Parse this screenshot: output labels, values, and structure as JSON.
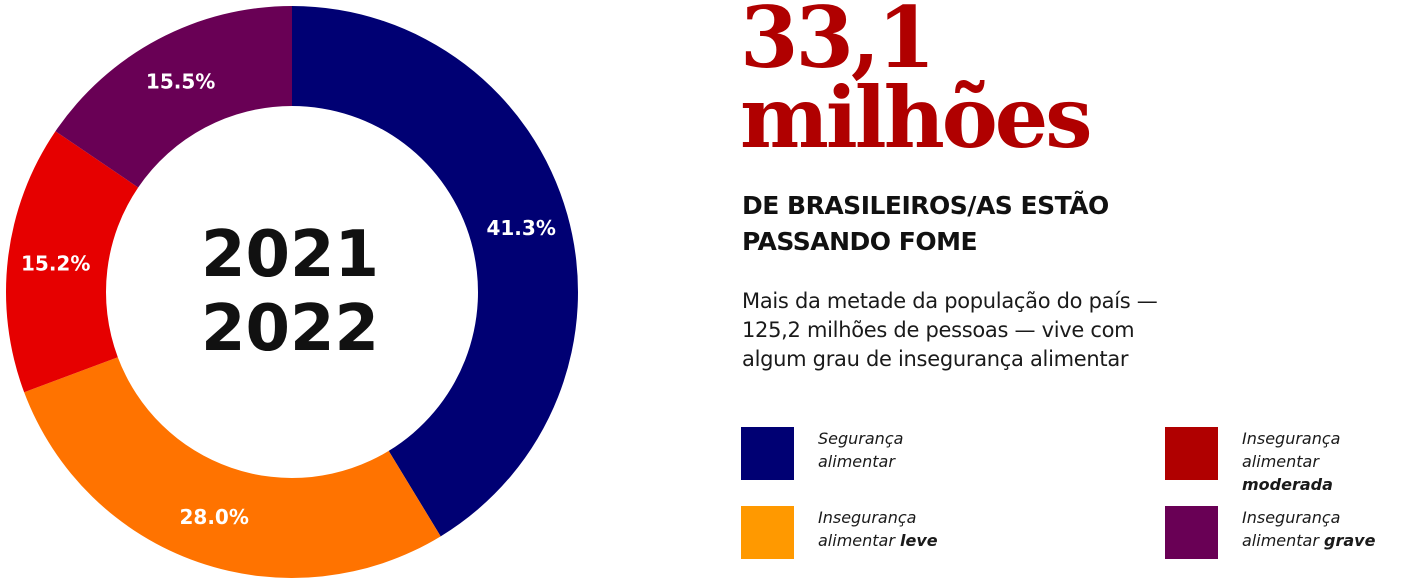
{
  "headline": {
    "line1": "33,1",
    "line2": "milhões"
  },
  "subhead": {
    "line1": "DE BRASILEIROS/AS ESTÃO",
    "line2": "PASSANDO FOME"
  },
  "description": {
    "line1": "Mais da metade da população do país —",
    "line2": "125,2 milhões de pessoas — vive com",
    "line3": "algum grau de insegurança alimentar"
  },
  "colors": {
    "seguranca": "#000073",
    "leve": "#ff7300",
    "moderada": "#e60000",
    "grave": "#690055",
    "headline": "#b00000",
    "legend_moderada": "#b00000",
    "legend_leve": "#ff9900"
  },
  "legend": [
    {
      "line1": "Segurança",
      "line2_prefix": "alimentar",
      "line2_emph": "",
      "color": "#000073"
    },
    {
      "line1": "Insegurança",
      "line2_prefix": "alimentar",
      "line2_emph": "moderada",
      "color": "#b00000"
    },
    {
      "line1": "Insegurança",
      "line2_prefix": "alimentar",
      "line2_emph": "leve",
      "color": "#ff9900"
    },
    {
      "line1": "Insegurança",
      "line2_prefix": "alimentar",
      "line2_emph": "grave",
      "color": "#690055"
    }
  ],
  "chart_data": {
    "type": "pie",
    "variant": "donut",
    "center_text": [
      "2021",
      "2022"
    ],
    "labels": [
      "41.3%",
      "28.0%",
      "15.2%",
      "15.5%"
    ],
    "categories": [
      "Segurança alimentar",
      "Insegurança alimentar leve",
      "Insegurança alimentar moderada",
      "Insegurança alimentar grave"
    ],
    "values": [
      41.3,
      28.0,
      15.2,
      15.5
    ],
    "colors": [
      "#000073",
      "#ff7300",
      "#e60000",
      "#690055"
    ],
    "start_angle": "top",
    "direction": "clockwise"
  }
}
